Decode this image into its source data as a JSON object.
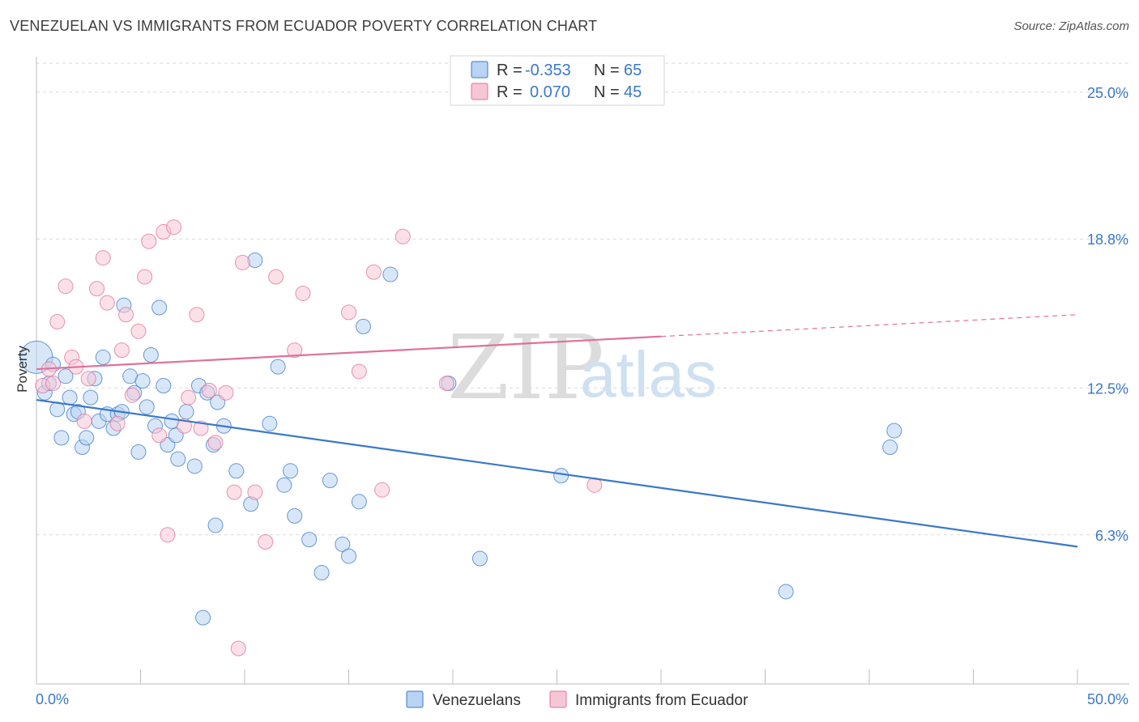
{
  "header": {
    "title": "VENEZUELAN VS IMMIGRANTS FROM ECUADOR POVERTY CORRELATION CHART",
    "source": "Source: ZipAtlas.com"
  },
  "watermark": {
    "zip": "ZIP",
    "atlas": "atlas"
  },
  "colors": {
    "blue": "#3a78c9",
    "blue_fill": "#b8d3f3",
    "pink": "#e0709a",
    "pink_fill": "#f7c6d5",
    "grid": "#d9d9d9"
  },
  "legend": {
    "rows": [
      {
        "r_label": "R =",
        "r_value": "-0.353",
        "n_label": "N =",
        "n_value": "65"
      },
      {
        "r_label": "R =",
        "r_value": "0.070",
        "n_label": "N =",
        "n_value": "45"
      }
    ]
  },
  "bottom_legend": [
    "Venezuelans",
    "Immigrants from Ecuador"
  ],
  "chart_data": {
    "type": "scatter",
    "title": "VENEZUELAN VS IMMIGRANTS FROM ECUADOR POVERTY CORRELATION CHART",
    "ylabel": "Poverty",
    "xlabel": "",
    "xlim": [
      0,
      50
    ],
    "ylim": [
      0,
      26.5
    ],
    "y_ticks": [
      {
        "value": 6.3,
        "label": "6.3%"
      },
      {
        "value": 12.5,
        "label": "12.5%"
      },
      {
        "value": 18.8,
        "label": "18.8%"
      },
      {
        "value": 25.0,
        "label": "25.0%"
      }
    ],
    "x_tick_labels": [
      {
        "value": 0,
        "label": "0.0%"
      },
      {
        "value": 50,
        "label": "50.0%"
      }
    ],
    "x_minor_ticks": [
      0,
      5,
      10,
      15,
      20,
      25,
      30,
      35,
      40,
      45,
      50
    ],
    "grid": true,
    "legend_position": "top-center",
    "series": [
      {
        "name": "Venezuelans",
        "color": "#3a78c9",
        "trend": {
          "x0": 0,
          "y0": 12.0,
          "x1": 50,
          "y1": 5.8,
          "dashed_from": null
        },
        "points": [
          [
            0,
            13.8
          ],
          [
            0.4,
            12.3
          ],
          [
            0.6,
            12.7
          ],
          [
            0.8,
            13.5
          ],
          [
            1.0,
            11.6
          ],
          [
            1.2,
            10.4
          ],
          [
            1.4,
            13.0
          ],
          [
            1.6,
            12.1
          ],
          [
            1.8,
            11.4
          ],
          [
            2.0,
            11.5
          ],
          [
            2.2,
            10.0
          ],
          [
            2.4,
            10.4
          ],
          [
            2.6,
            12.1
          ],
          [
            2.8,
            12.9
          ],
          [
            3.0,
            11.1
          ],
          [
            3.2,
            13.8
          ],
          [
            3.4,
            11.4
          ],
          [
            3.7,
            10.8
          ],
          [
            3.9,
            11.4
          ],
          [
            4.1,
            11.5
          ],
          [
            4.2,
            16.0
          ],
          [
            4.5,
            13.0
          ],
          [
            4.7,
            12.3
          ],
          [
            4.9,
            9.8
          ],
          [
            5.1,
            12.8
          ],
          [
            5.3,
            11.7
          ],
          [
            5.5,
            13.9
          ],
          [
            5.7,
            10.9
          ],
          [
            5.9,
            15.9
          ],
          [
            6.1,
            12.6
          ],
          [
            6.3,
            10.1
          ],
          [
            6.5,
            11.1
          ],
          [
            6.7,
            10.5
          ],
          [
            6.8,
            9.5
          ],
          [
            7.2,
            11.5
          ],
          [
            7.6,
            9.2
          ],
          [
            7.8,
            12.6
          ],
          [
            8.0,
            2.8
          ],
          [
            8.2,
            12.3
          ],
          [
            8.5,
            10.1
          ],
          [
            8.7,
            11.9
          ],
          [
            9.0,
            10.9
          ],
          [
            8.6,
            6.7
          ],
          [
            9.6,
            9.0
          ],
          [
            10.3,
            7.6
          ],
          [
            10.5,
            17.9
          ],
          [
            11.2,
            11.0
          ],
          [
            11.6,
            13.4
          ],
          [
            11.9,
            8.4
          ],
          [
            12.2,
            9.0
          ],
          [
            12.4,
            7.1
          ],
          [
            13.1,
            6.1
          ],
          [
            13.7,
            4.7
          ],
          [
            14.1,
            8.6
          ],
          [
            14.7,
            5.9
          ],
          [
            15.0,
            5.4
          ],
          [
            15.5,
            7.7
          ],
          [
            15.7,
            15.1
          ],
          [
            17.0,
            17.3
          ],
          [
            19.8,
            12.7
          ],
          [
            21.3,
            5.3
          ],
          [
            25.2,
            8.8
          ],
          [
            36.0,
            3.9
          ],
          [
            41.0,
            10.0
          ],
          [
            41.2,
            10.7
          ]
        ]
      },
      {
        "name": "Immigrants from Ecuador",
        "color": "#e0709a",
        "trend": {
          "x0": 0,
          "y0": 13.3,
          "x1": 50,
          "y1": 15.6,
          "dashed_from": 30
        },
        "points": [
          [
            0.3,
            12.6
          ],
          [
            0.6,
            13.3
          ],
          [
            0.8,
            12.7
          ],
          [
            1.0,
            15.3
          ],
          [
            1.4,
            16.8
          ],
          [
            1.7,
            13.8
          ],
          [
            1.9,
            13.4
          ],
          [
            2.3,
            11.1
          ],
          [
            2.5,
            12.9
          ],
          [
            2.9,
            16.7
          ],
          [
            3.2,
            18.0
          ],
          [
            3.4,
            16.1
          ],
          [
            3.9,
            11.0
          ],
          [
            4.1,
            14.1
          ],
          [
            4.3,
            15.6
          ],
          [
            4.6,
            12.2
          ],
          [
            4.9,
            14.9
          ],
          [
            5.2,
            17.2
          ],
          [
            5.4,
            18.7
          ],
          [
            5.9,
            10.5
          ],
          [
            6.1,
            19.1
          ],
          [
            6.3,
            6.3
          ],
          [
            6.6,
            19.3
          ],
          [
            7.1,
            10.9
          ],
          [
            7.3,
            12.1
          ],
          [
            7.7,
            15.6
          ],
          [
            7.9,
            10.8
          ],
          [
            8.3,
            12.4
          ],
          [
            8.6,
            10.2
          ],
          [
            9.1,
            12.3
          ],
          [
            9.5,
            8.1
          ],
          [
            9.7,
            1.5
          ],
          [
            9.9,
            17.8
          ],
          [
            10.5,
            8.1
          ],
          [
            11.0,
            6.0
          ],
          [
            11.5,
            17.2
          ],
          [
            12.4,
            14.1
          ],
          [
            12.8,
            16.5
          ],
          [
            15.0,
            15.7
          ],
          [
            15.5,
            13.2
          ],
          [
            16.2,
            17.4
          ],
          [
            16.6,
            8.2
          ],
          [
            17.6,
            18.9
          ],
          [
            26.8,
            8.4
          ],
          [
            19.7,
            12.7
          ]
        ]
      }
    ]
  }
}
